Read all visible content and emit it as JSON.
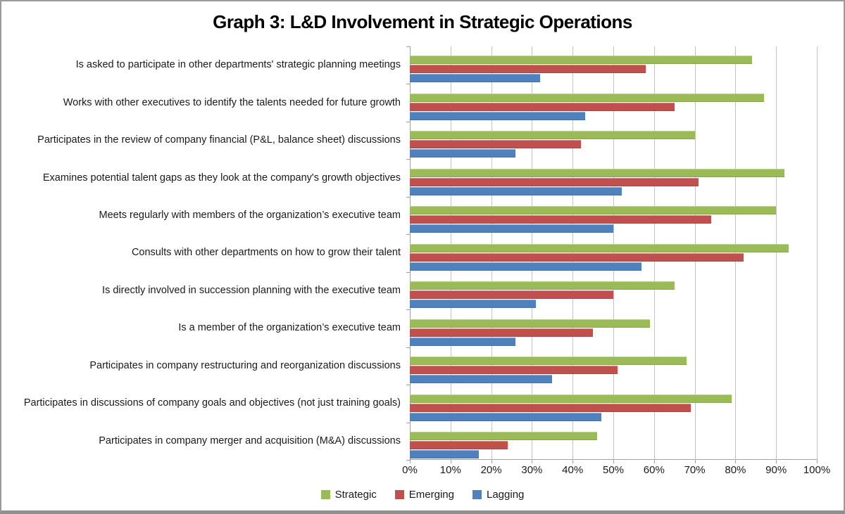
{
  "title": "Graph 3: L&D Involvement in Strategic Operations",
  "chart_data": {
    "type": "bar",
    "orientation": "horizontal",
    "title": "Graph 3: L&D Involvement in Strategic Operations",
    "categories": [
      "Is asked to participate in other departments' strategic planning meetings",
      "Works with other executives to identify the talents needed for future growth",
      "Participates in the review of company financial (P&L, balance sheet) discussions",
      "Examines potential talent gaps as they look at the company's growth objectives",
      "Meets regularly with members of the organization’s executive team",
      "Consults with other departments on how to grow their talent",
      "Is directly involved in succession planning with the executive team",
      "Is a member of the organization’s  executive team",
      "Participates in company restructuring and reorganization discussions",
      "Participates in discussions of company goals and objectives (not just training goals)",
      "Participates in company merger and acquisition (M&A) discussions"
    ],
    "series": [
      {
        "name": "Strategic",
        "color": "#9BBB59",
        "values": [
          84,
          87,
          70,
          92,
          90,
          93,
          65,
          59,
          68,
          79,
          46
        ]
      },
      {
        "name": "Emerging",
        "color": "#C0504D",
        "values": [
          58,
          65,
          42,
          71,
          74,
          82,
          50,
          45,
          51,
          69,
          24
        ]
      },
      {
        "name": "Lagging",
        "color": "#4F81BD",
        "values": [
          32,
          43,
          26,
          52,
          50,
          57,
          31,
          26,
          35,
          47,
          17
        ]
      }
    ],
    "x_axis": {
      "min": 0,
      "max": 100,
      "step": 10,
      "tick_labels": [
        "0%",
        "10%",
        "20%",
        "30%",
        "40%",
        "50%",
        "60%",
        "70%",
        "80%",
        "90%",
        "100%"
      ]
    },
    "grid": true,
    "legend_position": "bottom",
    "gridline_color": "#C3C3C3",
    "axis_color": "#9F9F9F"
  }
}
